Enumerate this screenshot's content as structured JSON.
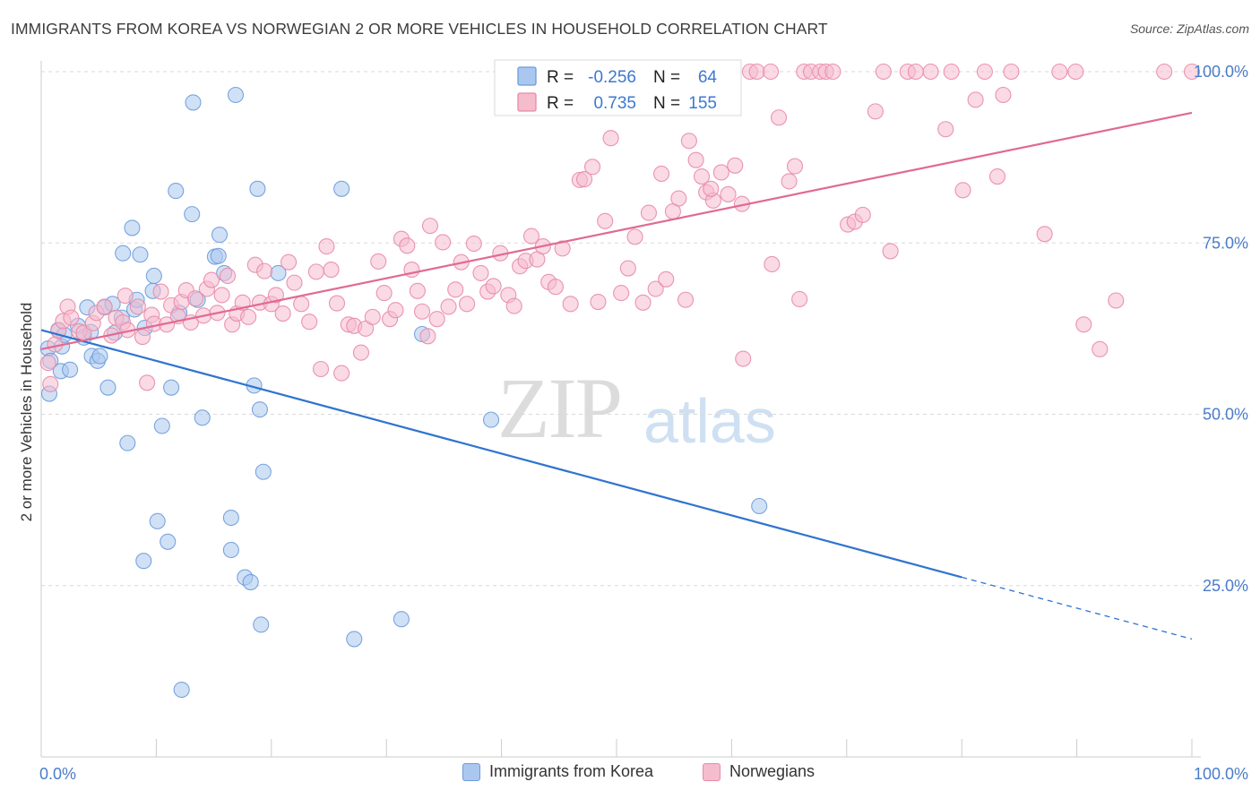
{
  "header": {
    "title": "IMMIGRANTS FROM KOREA VS NORWEGIAN 2 OR MORE VEHICLES IN HOUSEHOLD CORRELATION CHART",
    "source": "Source: ZipAtlas.com"
  },
  "watermark": {
    "zip": "ZIP",
    "atlas": "atlas"
  },
  "legend_box": {
    "rows": [
      {
        "r_label": "R =",
        "r_value": "-0.256",
        "n_label": "N =",
        "n_value": "64"
      },
      {
        "r_label": "R =",
        "r_value": "0.735",
        "n_label": "N =",
        "n_value": "155"
      }
    ]
  },
  "bottom_legend": {
    "korea": "Immigrants from Korea",
    "norwegians": "Norwegians"
  },
  "colors": {
    "korea_fill": "#aac8ef",
    "korea_stroke": "#6d9bdc",
    "korea_line": "#2f74d0",
    "norw_fill": "#f5bccd",
    "norw_stroke": "#e88aa8",
    "norw_line": "#e06a93",
    "value_text": "#3c78d0",
    "grid": "#d9d9d9"
  },
  "chart_data": {
    "type": "scatter",
    "title": "IMMIGRANTS FROM KOREA VS NORWEGIAN 2 OR MORE VEHICLES IN HOUSEHOLD CORRELATION CHART",
    "xlabel": "",
    "ylabel": "2 or more Vehicles in Household",
    "xlim": [
      0,
      100
    ],
    "ylim": [
      0,
      100
    ],
    "x_tick_labels": [
      "0.0%",
      "100.0%"
    ],
    "y_tick_labels": [
      "25.0%",
      "50.0%",
      "75.0%",
      "100.0%"
    ],
    "y_tick_values": [
      25,
      50,
      75,
      100
    ],
    "grid": true,
    "legend_placement": "top-center",
    "series": [
      {
        "name": "Immigrants from Korea",
        "R": -0.256,
        "N": 64,
        "trend": {
          "x0": 0,
          "y0": 62.3,
          "x1": 100,
          "y1": 17.2,
          "solid_until_x": 80
        },
        "points": [
          [
            0.6,
            59.6
          ],
          [
            0.7,
            53.0
          ],
          [
            0.8,
            57.8
          ],
          [
            1.5,
            62.3
          ],
          [
            1.7,
            56.3
          ],
          [
            1.8,
            59.9
          ],
          [
            2.0,
            61.6
          ],
          [
            2.5,
            56.5
          ],
          [
            3.2,
            62.9
          ],
          [
            3.7,
            61.2
          ],
          [
            4.0,
            65.6
          ],
          [
            4.3,
            62.0
          ],
          [
            4.4,
            58.5
          ],
          [
            4.9,
            57.8
          ],
          [
            5.1,
            58.5
          ],
          [
            5.5,
            65.6
          ],
          [
            5.8,
            53.9
          ],
          [
            6.2,
            66.1
          ],
          [
            6.4,
            61.9
          ],
          [
            7.0,
            64.1
          ],
          [
            7.1,
            73.5
          ],
          [
            7.5,
            45.8
          ],
          [
            7.9,
            77.2
          ],
          [
            8.1,
            65.3
          ],
          [
            8.3,
            66.7
          ],
          [
            8.6,
            73.3
          ],
          [
            8.9,
            28.6
          ],
          [
            9.0,
            62.6
          ],
          [
            9.7,
            68.0
          ],
          [
            9.8,
            70.2
          ],
          [
            10.1,
            34.4
          ],
          [
            10.5,
            48.3
          ],
          [
            11.0,
            31.4
          ],
          [
            11.3,
            53.9
          ],
          [
            11.7,
            82.6
          ],
          [
            12.0,
            64.8
          ],
          [
            12.2,
            9.8
          ],
          [
            13.1,
            79.2
          ],
          [
            13.2,
            95.5
          ],
          [
            13.6,
            66.7
          ],
          [
            14.0,
            49.5
          ],
          [
            15.1,
            73.0
          ],
          [
            15.4,
            73.1
          ],
          [
            15.5,
            76.2
          ],
          [
            15.9,
            70.6
          ],
          [
            16.5,
            34.9
          ],
          [
            16.5,
            30.2
          ],
          [
            16.9,
            96.6
          ],
          [
            17.7,
            26.2
          ],
          [
            18.2,
            25.5
          ],
          [
            18.5,
            54.2
          ],
          [
            18.8,
            82.9
          ],
          [
            19.0,
            50.7
          ],
          [
            19.1,
            19.3
          ],
          [
            19.3,
            41.6
          ],
          [
            20.6,
            70.6
          ],
          [
            26.1,
            82.9
          ],
          [
            27.2,
            17.2
          ],
          [
            31.3,
            20.1
          ],
          [
            33.1,
            61.7
          ],
          [
            39.1,
            49.2
          ],
          [
            62.4,
            36.6
          ]
        ]
      },
      {
        "name": "Norwegians",
        "R": 0.735,
        "N": 155,
        "trend": {
          "x0": 0,
          "y0": 59.5,
          "x1": 100,
          "y1": 94.0
        },
        "points": [
          [
            0.6,
            57.5
          ],
          [
            0.8,
            54.4
          ],
          [
            1.2,
            60.2
          ],
          [
            1.5,
            62.2
          ],
          [
            1.9,
            63.6
          ],
          [
            2.3,
            65.7
          ],
          [
            2.6,
            64.1
          ],
          [
            3.3,
            62.1
          ],
          [
            3.7,
            61.9
          ],
          [
            4.5,
            63.3
          ],
          [
            4.8,
            64.8
          ],
          [
            5.5,
            65.7
          ],
          [
            6.1,
            61.5
          ],
          [
            6.5,
            64.1
          ],
          [
            7.1,
            63.4
          ],
          [
            7.3,
            67.3
          ],
          [
            7.5,
            62.3
          ],
          [
            8.4,
            65.7
          ],
          [
            8.8,
            61.3
          ],
          [
            9.2,
            54.6
          ],
          [
            9.6,
            64.5
          ],
          [
            9.8,
            63.2
          ],
          [
            10.4,
            67.9
          ],
          [
            10.9,
            63.1
          ],
          [
            11.3,
            65.9
          ],
          [
            11.9,
            64.3
          ],
          [
            12.2,
            66.4
          ],
          [
            12.6,
            68.1
          ],
          [
            13.0,
            63.4
          ],
          [
            13.4,
            66.9
          ],
          [
            14.1,
            64.4
          ],
          [
            14.4,
            68.3
          ],
          [
            14.8,
            69.6
          ],
          [
            15.3,
            64.8
          ],
          [
            15.7,
            67.4
          ],
          [
            16.2,
            70.2
          ],
          [
            16.6,
            63.1
          ],
          [
            17.0,
            64.7
          ],
          [
            17.5,
            66.3
          ],
          [
            18.0,
            64.2
          ],
          [
            18.6,
            71.8
          ],
          [
            19.0,
            66.3
          ],
          [
            19.4,
            70.9
          ],
          [
            20.0,
            66.1
          ],
          [
            20.4,
            67.4
          ],
          [
            21.0,
            64.7
          ],
          [
            21.5,
            72.2
          ],
          [
            22.0,
            69.2
          ],
          [
            22.6,
            66.1
          ],
          [
            23.3,
            63.5
          ],
          [
            23.9,
            70.8
          ],
          [
            24.3,
            56.6
          ],
          [
            24.8,
            74.5
          ],
          [
            25.2,
            71.1
          ],
          [
            25.7,
            66.2
          ],
          [
            26.1,
            56.0
          ],
          [
            26.7,
            63.1
          ],
          [
            27.2,
            62.9
          ],
          [
            27.8,
            59.0
          ],
          [
            28.2,
            62.5
          ],
          [
            28.8,
            64.2
          ],
          [
            29.3,
            72.3
          ],
          [
            29.8,
            67.7
          ],
          [
            30.3,
            63.9
          ],
          [
            30.8,
            65.2
          ],
          [
            31.3,
            75.6
          ],
          [
            31.8,
            74.6
          ],
          [
            32.2,
            71.1
          ],
          [
            32.7,
            68.0
          ],
          [
            33.1,
            65.0
          ],
          [
            33.6,
            61.4
          ],
          [
            33.8,
            77.5
          ],
          [
            34.4,
            63.9
          ],
          [
            34.9,
            75.1
          ],
          [
            35.4,
            65.7
          ],
          [
            36.0,
            68.2
          ],
          [
            36.5,
            72.2
          ],
          [
            37.0,
            66.1
          ],
          [
            37.6,
            74.9
          ],
          [
            38.2,
            70.6
          ],
          [
            38.8,
            67.9
          ],
          [
            39.3,
            68.7
          ],
          [
            39.9,
            73.5
          ],
          [
            40.6,
            67.4
          ],
          [
            41.1,
            65.8
          ],
          [
            41.6,
            71.6
          ],
          [
            42.1,
            72.4
          ],
          [
            42.6,
            76.0
          ],
          [
            43.1,
            72.6
          ],
          [
            43.6,
            74.5
          ],
          [
            44.1,
            69.3
          ],
          [
            44.7,
            68.6
          ],
          [
            45.3,
            74.2
          ],
          [
            46.0,
            66.1
          ],
          [
            46.8,
            84.2
          ],
          [
            47.2,
            84.3
          ],
          [
            47.9,
            86.1
          ],
          [
            48.4,
            66.4
          ],
          [
            49.0,
            78.2
          ],
          [
            49.5,
            90.3
          ],
          [
            50.4,
            67.7
          ],
          [
            51.0,
            71.3
          ],
          [
            51.6,
            75.9
          ],
          [
            52.3,
            66.3
          ],
          [
            52.8,
            79.4
          ],
          [
            53.4,
            68.3
          ],
          [
            53.9,
            85.1
          ],
          [
            54.3,
            69.7
          ],
          [
            54.9,
            79.6
          ],
          [
            55.4,
            81.5
          ],
          [
            56.0,
            66.7
          ],
          [
            56.3,
            89.9
          ],
          [
            56.9,
            87.1
          ],
          [
            57.4,
            84.7
          ],
          [
            57.8,
            82.4
          ],
          [
            58.4,
            81.2
          ],
          [
            59.1,
            85.3
          ],
          [
            59.7,
            82.1
          ],
          [
            60.3,
            86.3
          ],
          [
            60.9,
            80.7
          ],
          [
            61.6,
            100
          ],
          [
            62.2,
            100
          ],
          [
            63.4,
            100
          ],
          [
            64.1,
            93.3
          ],
          [
            65.0,
            84.0
          ],
          [
            65.5,
            86.2
          ],
          [
            66.3,
            100
          ],
          [
            66.9,
            100
          ],
          [
            67.7,
            100
          ],
          [
            68.2,
            100
          ],
          [
            68.8,
            100
          ],
          [
            70.1,
            77.7
          ],
          [
            70.7,
            78.1
          ],
          [
            71.4,
            79.1
          ],
          [
            72.5,
            94.2
          ],
          [
            73.2,
            100
          ],
          [
            73.8,
            73.8
          ],
          [
            75.3,
            100
          ],
          [
            76.0,
            100
          ],
          [
            77.3,
            100
          ],
          [
            78.6,
            91.6
          ],
          [
            79.1,
            100
          ],
          [
            80.1,
            82.7
          ],
          [
            81.2,
            95.9
          ],
          [
            82.0,
            100
          ],
          [
            83.1,
            84.7
          ],
          [
            83.6,
            96.6
          ],
          [
            84.3,
            100
          ],
          [
            87.2,
            76.3
          ],
          [
            88.5,
            100
          ],
          [
            89.9,
            100
          ],
          [
            90.6,
            63.1
          ],
          [
            92.0,
            59.5
          ],
          [
            93.4,
            66.6
          ],
          [
            97.6,
            100
          ],
          [
            100,
            100
          ],
          [
            58.2,
            82.9
          ],
          [
            61.0,
            58.1
          ],
          [
            63.5,
            71.9
          ],
          [
            65.9,
            66.8
          ]
        ]
      }
    ]
  }
}
